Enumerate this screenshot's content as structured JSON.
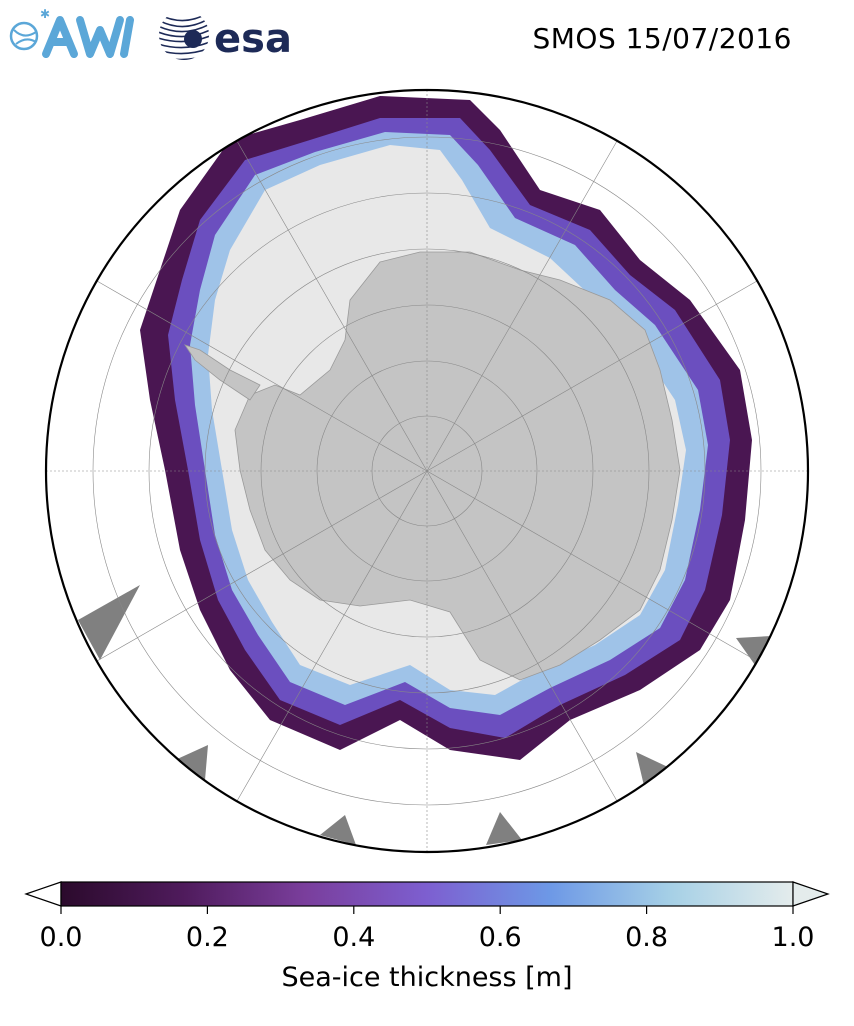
{
  "header": {
    "title": "SMOS 15/07/2016",
    "logos": [
      {
        "name": "awi-logo",
        "text": "AWI"
      },
      {
        "name": "esa-logo",
        "text": "esa"
      }
    ]
  },
  "map": {
    "projection": "south-polar-stereographic",
    "graticule": true,
    "colors": {
      "land": "#c4c4c4",
      "ocean": "#ffffff",
      "no_data": "#808080",
      "thin_ice": "#3b0f3a",
      "thick_ice": "#e8e8e8"
    }
  },
  "colorbar": {
    "label": "Sea-ice thickness [m]",
    "range": [
      0.0,
      1.0
    ],
    "extend": "both",
    "ticks": [
      "0.0",
      "0.2",
      "0.4",
      "0.6",
      "0.8",
      "1.0"
    ],
    "tick_values": [
      0.0,
      0.2,
      0.4,
      0.6,
      0.8,
      1.0
    ],
    "colormap_stops": [
      "#2b0a2c",
      "#4f1b5c",
      "#7a3e9c",
      "#7d5fd0",
      "#6d98e6",
      "#a6d0e6",
      "#e4ecec"
    ]
  }
}
